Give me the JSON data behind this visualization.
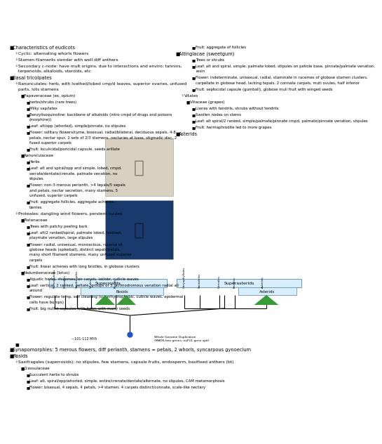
{
  "bg_color": "#ffffff",
  "left_column": [
    {
      "level": 1,
      "text": "Characteristics of eudicots"
    },
    {
      "level": 2,
      "text": "Cyclic: alternating whorls flowers"
    },
    {
      "level": 2,
      "text": "Stamen filaments slender with well diff anthers"
    },
    {
      "level": 2,
      "text": "Secondary c-node: have mult origins, due to interactions and enviro; tannins, terpenoids, alkaloids, steroids, etc"
    },
    {
      "level": 1,
      "text": "Basal tricolpates"
    },
    {
      "level": 2,
      "text": "Ranunculales: herb, with loathed/lobed cmp/d leaves, superior ovaries, unfused parts, lots stamens"
    },
    {
      "level": 3,
      "text": "Papaveraceae (ex. opium)"
    },
    {
      "level": 4,
      "text": "herbs/shrubs (rare trees)"
    },
    {
      "level": 4,
      "text": "Milky sap/latex"
    },
    {
      "level": 4,
      "text": "Benzylisoquinoline: backbone of alkaloids (intro cmpd of drugs and poisons (morphine))"
    },
    {
      "level": 4,
      "text": "Leaf: alt/opp (whorled), simple/pinnate, no stipules"
    },
    {
      "level": 4,
      "text": "Flower: solitary flowers/cyme, bisexual, radial/bilateral, deciduous sepals, 4-8 petals, nectar spur, 2 sets of 2/3 stamens, nectaries at base, stigmatic disc, 2 fused superior carpels"
    },
    {
      "level": 4,
      "text": "Fruit: loculicidal/poricidal capsule, seeds arillate"
    },
    {
      "level": 3,
      "text": "Ranunculaceae"
    },
    {
      "level": 4,
      "text": "Herbs"
    },
    {
      "level": 4,
      "text": "Leaf: alt and spiral/opp and simple, lobed, cmpd, serrate/dentate/crenate, palmate venation, no stipules"
    },
    {
      "level": 4,
      "text": "Flower: non-3-merous perianth, >4 tepals/5 sepals and petals, nectar secretion, many stamens, 5 unfused, superior carpels"
    },
    {
      "level": 4,
      "text": "Fruit: aggregate follicles, aggregate achenes, berries"
    },
    {
      "level": 2,
      "text": "Proteales: dangling wind flowers, pendent ovules"
    },
    {
      "level": 3,
      "text": "Platanaceae"
    },
    {
      "level": 4,
      "text": "Trees with patchy peeling bark"
    },
    {
      "level": 4,
      "text": "Leaf: alt/2 ranked/spiral, palmate lobed, toothed, playmate venation, large stipules"
    },
    {
      "level": 4,
      "text": "Flower: radial, unisexual, monoecious, raceme of globose heads (spikeball), distinct sepals/petals, many short filament stamens, many unfused superior carpels"
    },
    {
      "level": 4,
      "text": "Fruit: linear achenes with long bristles, in globose clusters"
    },
    {
      "level": 3,
      "text": "Nelumbonaceae (lotus)"
    },
    {
      "level": 4,
      "text": "Aquatic herbs, rhizomes, air canals, lat/obr, cuticle waves"
    },
    {
      "level": 4,
      "text": "Leaf: vertical, 2 ranked, peltate, groups of 3, actinodromous venation radial all around"
    },
    {
      "level": 4,
      "text": "Flower: regulate temp, self cleaning (superhydrophobic, cuticle waves, epidermal cells have bumps)"
    },
    {
      "level": 4,
      "text": "Fruit: big nutlet capsules with holes with many seeds"
    }
  ],
  "right_column": [
    {
      "level": 4,
      "text": "Fruit: aggregate of follicles"
    },
    {
      "level": 1,
      "text": "Altingiacae (sweetgum)"
    },
    {
      "level": 4,
      "text": "Trees or shrubs"
    },
    {
      "level": 4,
      "text": "Leaf: alt and spiral, simple, palmate lobed, stipules on petiole base, pinnate/palmate venation, resin"
    },
    {
      "level": 4,
      "text": "Flower: indeterminate, unisexual, radial, staminate in racemes of globose stamen clusters, carpellate in globose head, lacking tepals, 2 connate carpels, muti ovules, half inferior"
    },
    {
      "level": 4,
      "text": "Fruit: septocidal capsule (gumball), globose muli fruit with winged seeds"
    },
    {
      "level": 2,
      "text": "Vitales"
    },
    {
      "level": 3,
      "text": "Vitaceae (grapes)"
    },
    {
      "level": 4,
      "text": "Lianas with tendrils, shrubs without tendrils"
    },
    {
      "level": 4,
      "text": "Swollen nodes on stems"
    },
    {
      "level": 4,
      "text": "Leaf: alt spiral/2 ranked, simple/palmate/pinnate cmpd, palmate/pinnate venation, stipules"
    },
    {
      "level": 4,
      "text": "Fruit: hermaphrodite led to more grapes"
    },
    {
      "level": 1,
      "text": "Asterids"
    },
    {
      "level": 2,
      "text": ""
    },
    {
      "level": 2,
      "text": ""
    }
  ],
  "bottom_items": [
    {
      "level": 0,
      "text": ""
    },
    {
      "level": 1,
      "text": "Synapomorphies: 5 merous flowers, diff perianth, stamens = petals, 2 whorls, syncarpous gynoecium"
    },
    {
      "level": 1,
      "text": "Rosids"
    },
    {
      "level": 2,
      "text": "Saxifragales (superrosids): no stipules, few stamens, capsule fruits, endosperm, basifixed anthers (bt)"
    },
    {
      "level": 3,
      "text": "Crassulaceae"
    },
    {
      "level": 4,
      "text": "Succulent herbs to shrubs"
    },
    {
      "level": 4,
      "text": "Leaf: alt, spiral/opp/whorled, simple, entire/crenate/dentate/alternate, no stipules, CAM metamorphosis"
    },
    {
      "level": 4,
      "text": "Flower: bisexual, 4 sepals, 4 petals, >4 stamen, 4 carpels distinct/connate, scale-like nectary"
    }
  ],
  "time_label": "~101-112 MYA",
  "wgd_label": "Whole Genome Duplication\n(MADS-box genes, euFUL gene spit)"
}
